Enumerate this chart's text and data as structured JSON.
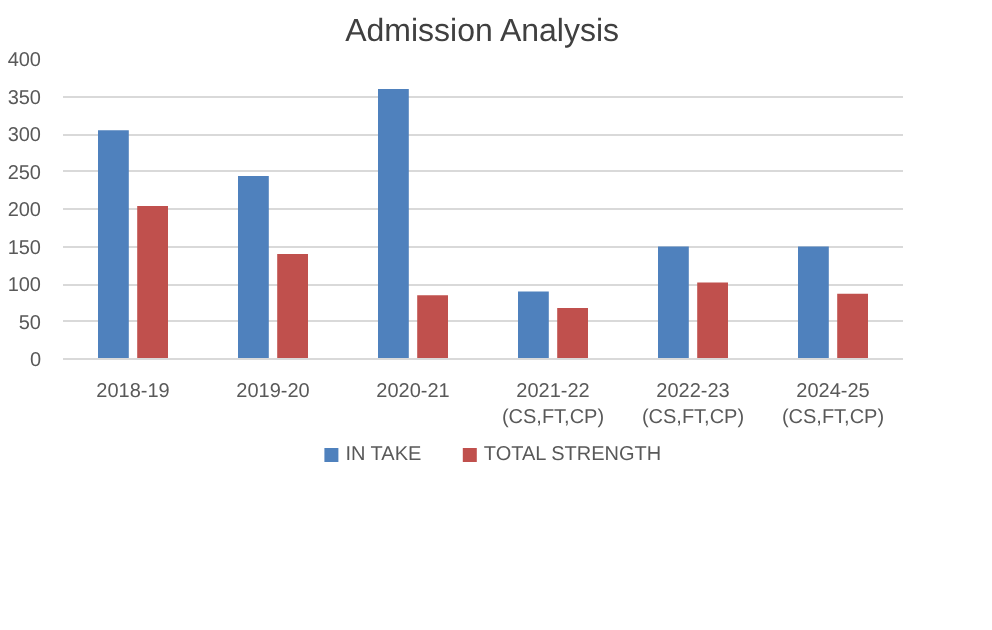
{
  "chart_data": {
    "type": "bar",
    "title": "Admission Analysis",
    "categories": [
      "2018-19",
      "2019-20",
      "2020-21",
      "2021-22\n(CS,FT,CP)",
      "2022-23\n(CS,FT,CP)",
      "2024-25\n(CS,FT,CP)"
    ],
    "series": [
      {
        "name": "IN TAKE",
        "color": "#4f81bd",
        "values": [
          305,
          244,
          360,
          90,
          150,
          150
        ]
      },
      {
        "name": "TOTAL STRENGTH",
        "color": "#c0504d",
        "values": [
          204,
          140,
          85,
          68,
          102,
          87
        ]
      }
    ],
    "ylim": [
      0,
      400
    ],
    "yticks": [
      0,
      50,
      100,
      150,
      200,
      250,
      300,
      350,
      400
    ],
    "grid": "y",
    "legend": "bottom"
  }
}
